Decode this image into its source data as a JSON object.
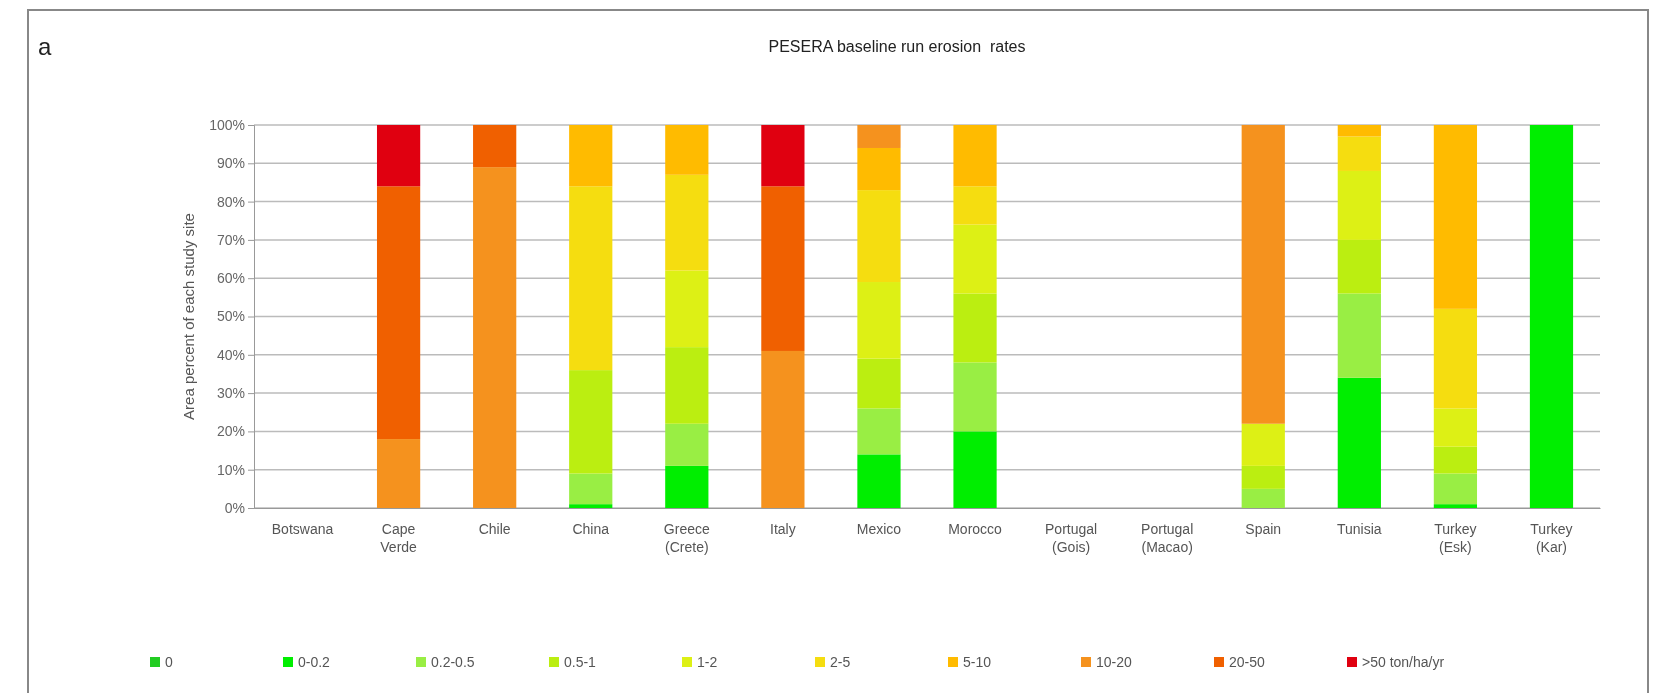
{
  "chart_data": {
    "type": "bar",
    "stacked": true,
    "title": "PESERA baseline run erosion  rates",
    "ylabel": "Area percent of each study site",
    "annotations": [
      "a"
    ],
    "categories": [
      "Botswana",
      "Cape\nVerde",
      "Chile",
      "China",
      "Greece\n(Crete)",
      "Italy",
      "Mexico",
      "Morocco",
      "Portugal\n(Gois)",
      "Portugal\n(Macao)",
      "Spain",
      "Tunisia",
      "Turkey\n(Esk)",
      "Turkey\n(Kar)"
    ],
    "series": [
      {
        "name": "0",
        "color": "#22cc22",
        "values": [
          0,
          0,
          0,
          0,
          0,
          0,
          0,
          0,
          0,
          0,
          0,
          0,
          0,
          0
        ]
      },
      {
        "name": "0-0.2",
        "color": "#00ee00",
        "values": [
          0,
          0,
          0,
          1,
          11,
          0,
          14,
          20,
          0,
          0,
          0,
          34,
          1,
          100
        ]
      },
      {
        "name": "0.2-0.5",
        "color": "#99ee44",
        "values": [
          0,
          0,
          0,
          8,
          11,
          0,
          12,
          18,
          0,
          0,
          5,
          22,
          8,
          0
        ]
      },
      {
        "name": "0.5-1",
        "color": "#bbee11",
        "values": [
          0,
          0,
          0,
          27,
          20,
          0,
          13,
          18,
          0,
          0,
          6,
          14,
          7,
          0
        ]
      },
      {
        "name": "1-2",
        "color": "#ddf015",
        "values": [
          0,
          0,
          0,
          0,
          20,
          0,
          20,
          18,
          0,
          0,
          11,
          18,
          10,
          0
        ]
      },
      {
        "name": "2-5",
        "color": "#f5dd10",
        "values": [
          0,
          0,
          0,
          48,
          25,
          0,
          24,
          10,
          0,
          0,
          0,
          9,
          26,
          0
        ]
      },
      {
        "name": "5-10",
        "color": "#ffbb00",
        "values": [
          0,
          0,
          0,
          16,
          13,
          0,
          11,
          16,
          0,
          0,
          0,
          3,
          48,
          0
        ]
      },
      {
        "name": "10-20",
        "color": "#f5921e",
        "values": [
          0,
          18,
          89,
          0,
          0,
          41,
          6,
          0,
          0,
          0,
          78,
          0,
          0,
          0
        ]
      },
      {
        "name": "20-50",
        "color": "#f06000",
        "values": [
          0,
          66,
          11,
          0,
          0,
          43,
          0,
          0,
          0,
          0,
          0,
          0,
          0,
          0
        ]
      },
      {
        "name": ">50 ton/ha/yr",
        "color": "#e00010",
        "values": [
          0,
          16,
          0,
          0,
          0,
          16,
          0,
          0,
          0,
          0,
          0,
          0,
          0,
          0
        ]
      }
    ],
    "ylim": [
      0,
      100
    ],
    "yticks": [
      {
        "value": 0,
        "label": "0%"
      },
      {
        "value": 10,
        "label": "10%"
      },
      {
        "value": 20,
        "label": "20%"
      },
      {
        "value": 30,
        "label": "30%"
      },
      {
        "value": 40,
        "label": "40%"
      },
      {
        "value": 50,
        "label": "50%"
      },
      {
        "value": 60,
        "label": "60%"
      },
      {
        "value": 70,
        "label": "70%"
      },
      {
        "value": 80,
        "label": "80%"
      },
      {
        "value": 90,
        "label": "90%"
      },
      {
        "value": 100,
        "label": "100%"
      }
    ],
    "grid": "y",
    "legend": "bottom"
  }
}
